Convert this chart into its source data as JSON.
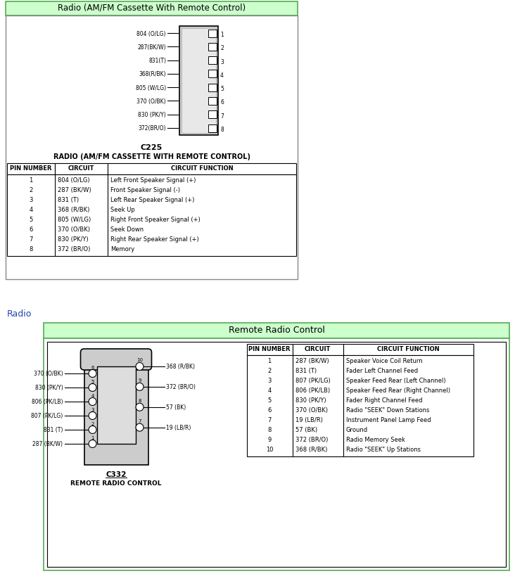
{
  "bg_color": "#ffffff",
  "section1": {
    "header_text": "Radio (AM/FM Cassette With Remote Control)",
    "header_bg": "#ccffcc",
    "connector_label": "C225",
    "connector_title": "RADIO (AM/FM CASSETTE WITH REMOTE CONTROL)",
    "pins": [
      {
        "num": "1",
        "circuit": "804 (O/LG)",
        "function": "Left Front Speaker Signal (+)"
      },
      {
        "num": "2",
        "circuit": "287 (BK/W)",
        "function": "Front Speaker Signal (-)"
      },
      {
        "num": "3",
        "circuit": "831 (T)",
        "function": "Left Rear Speaker Signal (+)"
      },
      {
        "num": "4",
        "circuit": "368 (R/BK)",
        "function": "Seek Up"
      },
      {
        "num": "5",
        "circuit": "805 (W/LG)",
        "function": "Right Front Speaker Signal (+)"
      },
      {
        "num": "6",
        "circuit": "370 (O/BK)",
        "function": "Seek Down"
      },
      {
        "num": "7",
        "circuit": "830 (PK/Y)",
        "function": "Right Rear Speaker Signal (+)"
      },
      {
        "num": "8",
        "circuit": "372 (BR/O)",
        "function": "Memory"
      }
    ],
    "wire_labels": [
      "804 (O/LG)",
      "287(BK/W)",
      "831(T)",
      "368(R/BK)",
      "805 (W/LG)",
      "370 (O/BK)",
      "830 (PK/Y)",
      "372(BR/O)"
    ]
  },
  "section2": {
    "header_text": "Remote Radio Control",
    "header_bg": "#ccffcc",
    "section_label": "Radio",
    "connector_label": "C332",
    "connector_title": "REMOTE RADIO CONTROL",
    "left_pins": [
      {
        "num": "6",
        "label": "370 (O/BK)"
      },
      {
        "num": "5",
        "label": "830 (PK/Y)"
      },
      {
        "num": "4",
        "label": "806 (PK/LB)"
      },
      {
        "num": "3",
        "label": "807 (PK/LG)"
      },
      {
        "num": "2",
        "label": "831 (T)"
      },
      {
        "num": "1",
        "label": "287 (BK/W)"
      }
    ],
    "right_pins": [
      {
        "num": "10",
        "label": "368 (R/BK)"
      },
      {
        "num": "9",
        "label": "372 (BR/O)"
      },
      {
        "num": "8",
        "label": "57 (BK)"
      },
      {
        "num": "7",
        "label": "19 (LB/R)"
      }
    ],
    "pins": [
      {
        "num": "1",
        "circuit": "287 (BK/W)",
        "function": "Speaker Voice Coil Return"
      },
      {
        "num": "2",
        "circuit": "831 (T)",
        "function": "Fader Left Channel Feed"
      },
      {
        "num": "3",
        "circuit": "807 (PK/LG)",
        "function": "Speaker Feed Rear (Left Channel)"
      },
      {
        "num": "4",
        "circuit": "806 (PK/LB)",
        "function": "Speaker Feed Rear (Right Channel)"
      },
      {
        "num": "5",
        "circuit": "830 (PK/Y)",
        "function": "Fader Right Channel Feed"
      },
      {
        "num": "6",
        "circuit": "370 (O/BK)",
        "function": "Radio \"SEEK\" Down Stations"
      },
      {
        "num": "7",
        "circuit": "19 (LB/R)",
        "function": "Instrument Panel Lamp Feed"
      },
      {
        "num": "8",
        "circuit": "57 (BK)",
        "function": "Ground"
      },
      {
        "num": "9",
        "circuit": "372 (BR/O)",
        "function": "Radio Memory Seek"
      },
      {
        "num": "10",
        "circuit": "368 (R/BK)",
        "function": "Radio \"SEEK\" Up Stations"
      }
    ]
  }
}
